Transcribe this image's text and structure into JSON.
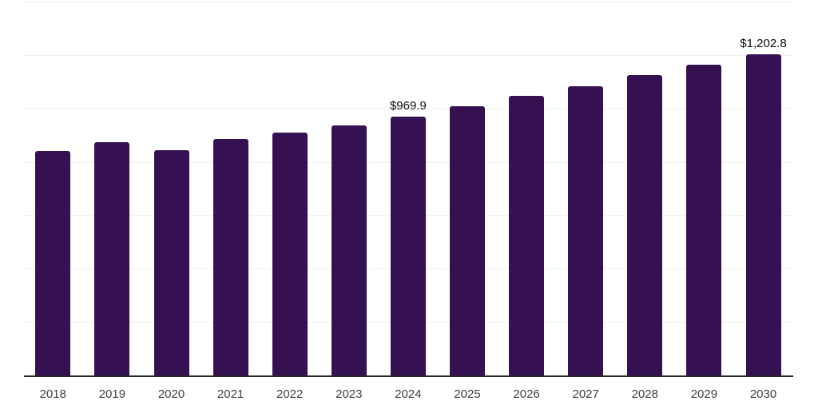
{
  "chart_data": {
    "type": "bar",
    "title": "",
    "xlabel": "",
    "ylabel": "",
    "categories": [
      "2018",
      "2019",
      "2020",
      "2021",
      "2022",
      "2023",
      "2024",
      "2025",
      "2026",
      "2027",
      "2028",
      "2029",
      "2030"
    ],
    "values": [
      841.5,
      872.2,
      844.5,
      886.1,
      908.9,
      937.8,
      969.9,
      1008.4,
      1046.0,
      1083.0,
      1124.7,
      1163.5,
      1202.8
    ],
    "data_labels": [
      null,
      null,
      null,
      null,
      null,
      null,
      "$969.9",
      null,
      null,
      null,
      null,
      null,
      "$1,202.8"
    ],
    "ylim": [
      0,
      1400
    ],
    "gridline_step": 200,
    "grid": true,
    "legend": false,
    "bar_color": "#361151",
    "gridline_color": "#f0f0f0",
    "axis_line_color": "#262626",
    "data_label_color": "#0d0d0d",
    "tick_label_color": "#404040"
  }
}
